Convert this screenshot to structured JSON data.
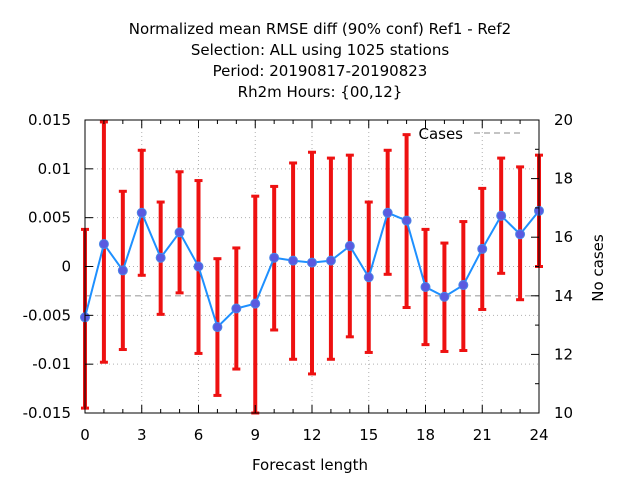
{
  "chart_data": {
    "type": "line",
    "title_lines": [
      "Normalized mean RMSE diff (90% conf) Ref1 - Ref2",
      "Selection: ALL using  1025 stations",
      "Period: 20190817-20190823",
      "Rh2m   Hours: {00,12}"
    ],
    "xlabel": "Forecast length",
    "ylabel_right": "No cases",
    "xlim": [
      0,
      24
    ],
    "ylim": [
      -0.015,
      0.015
    ],
    "y2lim": [
      10,
      20
    ],
    "x_ticks": [
      0,
      3,
      6,
      9,
      12,
      15,
      18,
      21,
      24
    ],
    "y_ticks": [
      -0.015,
      -0.01,
      -0.005,
      0,
      0.005,
      0.01,
      0.015
    ],
    "y_tick_labels": [
      "-0.015",
      "-0.01",
      "-0.005",
      "0",
      "0.005",
      "0.01",
      "0.015"
    ],
    "y2_ticks": [
      10,
      12,
      14,
      16,
      18,
      20
    ],
    "grid": true,
    "legend": {
      "position": "top-right",
      "entries": [
        "Cases"
      ]
    },
    "colors": {
      "line": "#1e90ff",
      "marker": "#5a5ae0",
      "errorbar": "#ee1111",
      "cases": "#a0a0a0",
      "grid": "#b0b0b0"
    },
    "series": [
      {
        "x": [
          0,
          1,
          2,
          3,
          4,
          5,
          6,
          7,
          8,
          9,
          10,
          11,
          12,
          13,
          14,
          15,
          16,
          17,
          18,
          19,
          20,
          21,
          22,
          23,
          24
        ],
        "values": [
          -0.0052,
          0.0023,
          -0.0004,
          0.0055,
          0.0009,
          0.0035,
          0.0,
          -0.0062,
          -0.0043,
          -0.0038,
          0.0009,
          0.0006,
          0.0004,
          0.0006,
          0.0021,
          -0.0011,
          0.0055,
          0.0047,
          -0.0021,
          -0.0031,
          -0.0019,
          0.0018,
          0.0052,
          0.0033,
          0.0057
        ],
        "err_low": [
          -0.0145,
          -0.0098,
          -0.0085,
          -0.0009,
          -0.0049,
          -0.0027,
          -0.0089,
          -0.0132,
          -0.0105,
          -0.015,
          -0.0065,
          -0.0095,
          -0.011,
          -0.0095,
          -0.0072,
          -0.0088,
          -0.0008,
          -0.0042,
          -0.008,
          -0.0087,
          -0.0086,
          -0.0044,
          -0.0007,
          -0.0034,
          0.0
        ],
        "err_high": [
          0.0038,
          0.0148,
          0.0077,
          0.0119,
          0.0066,
          0.0097,
          0.0088,
          0.0008,
          0.0019,
          0.0072,
          0.0082,
          0.0106,
          0.0117,
          0.0111,
          0.0114,
          0.0066,
          0.0119,
          0.0135,
          0.0038,
          0.0024,
          0.0046,
          0.008,
          0.0111,
          0.0102,
          0.0114
        ]
      },
      {
        "name": "Cases",
        "axis": "y2",
        "x": [
          0,
          1,
          2,
          3,
          4,
          5,
          6,
          7,
          8,
          9,
          10,
          11,
          12,
          13,
          14,
          15,
          16,
          17,
          18,
          19,
          20,
          21,
          22,
          23,
          24
        ],
        "values": [
          14,
          14,
          14,
          14,
          14,
          14,
          14,
          14,
          14,
          14,
          14,
          14,
          14,
          14,
          14,
          14,
          14,
          14,
          14,
          14,
          14,
          14,
          14,
          14,
          14
        ]
      }
    ]
  }
}
